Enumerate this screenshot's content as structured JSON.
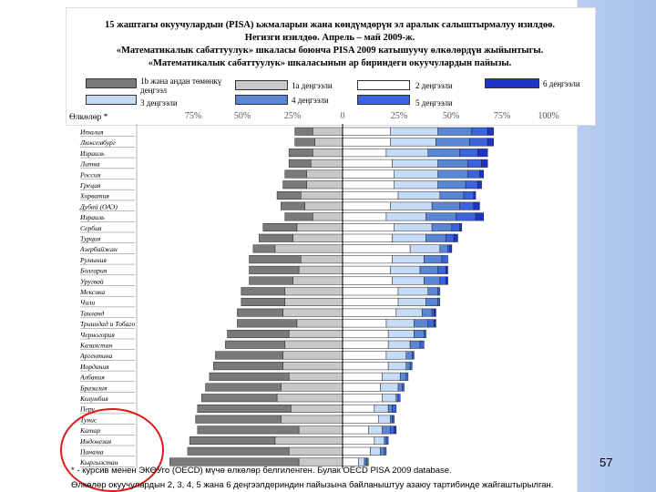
{
  "title_lines": [
    "15 жаштагы окуучулардын (PISA) ьжмаларын жана көндүмдөрүн эл аралык салыштырмалуу изилдөө.",
    "Негизги изилдөө. Апрель – май 2009-ж.",
    "«Математикалык сабаттуулук» шкаласы боюнча PISA 2009 катышуучу өлкөлөрдүн жыйынтыгы.",
    "«Математикалык  сабаттуулук» шкаласынын ар бириндеги окуучулардын пайызы."
  ],
  "legend": [
    {
      "label": "1b жана андан төмөнкү деңгээл",
      "color": "#7a7a7a",
      "level": "below1"
    },
    {
      "label": "1a деңгээли",
      "color": "#c8c8c8",
      "level": "1"
    },
    {
      "label": "2 деңгээли",
      "color": "#ffffff",
      "level": "2"
    },
    {
      "label": "6 деңгээли",
      "color": "#1e34c8",
      "level": "6"
    },
    {
      "label": "3 деңгээли",
      "color": "#c6dcf6",
      "level": "3"
    },
    {
      "label": "4 деңгээли",
      "color": "#5a86d6",
      "level": "4"
    },
    {
      "label": "5 деңгээли",
      "color": "#3b63df",
      "level": "5"
    }
  ],
  "corner_label": "Өлкөлөр *",
  "page_number": "57",
  "footnotes": [
    "* - курсив менен  ЭКӨУго (OECD) мүчө өлкөлөр белгиленген. Булак OECD PISA 2009 database.",
    "Өлкөлөр окуучулардын 2, 3, 4, 5 жана 6 деңгээлдериндин пайызына байланыштуу азаюу тартибинде жайгаштырылган."
  ],
  "chart_data": {
    "type": "bar",
    "stacking": "diverging-100-percent",
    "title": "«Математикалык сабаттуулук» шкаласынын ар бириндеги окуучулардын пайызы",
    "xlabel": "",
    "ylabel": "Өлкөлөр *",
    "xlim": [
      -100,
      100
    ],
    "xtick_labels": [
      "75%",
      "50%",
      "25%",
      "0",
      "25%",
      "50%",
      "75%",
      "100%"
    ],
    "xtick_values": [
      -75,
      -50,
      -25,
      0,
      25,
      50,
      75,
      100
    ],
    "series_order": [
      "below1",
      "1",
      "2",
      "3",
      "4",
      "5",
      "6"
    ],
    "series_colors": {
      "below1": "#7a7a7a",
      "1": "#c8c8c8",
      "2": "#ffffff",
      "3": "#c6dcf6",
      "4": "#5a86d6",
      "5": "#3b63df",
      "6": "#1e34c8"
    },
    "categories": [
      "Италия",
      "Люксембург",
      "Израиль",
      "Литва",
      "Россия",
      "Греция",
      "Хорватия",
      "Дубай (ОАЭ)",
      "Израиль",
      "Сербия",
      "Турция",
      "Азербайжан",
      "Румыния",
      "Болгария",
      "Уругвай",
      "Мексика",
      "Чили",
      "Таиланд",
      "Тринидад и Тобаго",
      "Черногория",
      "Казахстан",
      "Аргентина",
      "Иордания",
      "Албания",
      "Бразилия",
      "Колумбия",
      "Перу",
      "Тунис",
      "Катар",
      "Индонезия",
      "Панама",
      "Кыргызстан"
    ],
    "series": [
      {
        "name": "below1",
        "values": [
          9,
          10,
          12,
          11,
          11,
          12,
          12,
          12,
          14,
          17,
          17,
          11,
          26,
          25,
          22,
          22,
          22,
          23,
          30,
          31,
          30,
          34,
          35,
          40,
          38,
          38,
          47,
          43,
          51,
          43,
          51,
          65
        ]
      },
      {
        "name": "1",
        "values": [
          15,
          14,
          15,
          16,
          18,
          18,
          21,
          19,
          15,
          23,
          25,
          34,
          21,
          22,
          25,
          29,
          29,
          30,
          23,
          27,
          29,
          30,
          30,
          27,
          31,
          33,
          26,
          31,
          22,
          34,
          27,
          22
        ]
      },
      {
        "name": "2",
        "values": [
          24,
          24,
          22,
          25,
          26,
          26,
          28,
          24,
          22,
          26,
          25,
          34,
          25,
          24,
          25,
          28,
          28,
          27,
          22,
          23,
          23,
          22,
          23,
          20,
          19,
          20,
          16,
          18,
          13,
          16,
          14,
          8
        ]
      },
      {
        "name": "3",
        "values": [
          24,
          23,
          21,
          23,
          22,
          22,
          21,
          21,
          20,
          19,
          17,
          15,
          16,
          15,
          16,
          15,
          14,
          13,
          14,
          13,
          11,
          10,
          9,
          9,
          9,
          7,
          7,
          6,
          7,
          5,
          5,
          3
        ]
      },
      {
        "name": "4",
        "values": [
          17,
          17,
          16,
          15,
          15,
          14,
          12,
          14,
          15,
          10,
          10,
          4,
          9,
          9,
          8,
          5,
          6,
          5,
          7,
          5,
          5,
          3,
          2,
          3,
          2,
          1,
          2,
          1,
          4,
          1,
          2,
          1
        ]
      },
      {
        "name": "5",
        "values": [
          8,
          9,
          9,
          7,
          6,
          6,
          5,
          7,
          10,
          4,
          4,
          1,
          3,
          4,
          3,
          1,
          1,
          1,
          3,
          1,
          2,
          1,
          1,
          1,
          1,
          1,
          2,
          1,
          2,
          1,
          1,
          1
        ]
      },
      {
        "name": "6",
        "values": [
          3,
          3,
          5,
          3,
          2,
          2,
          1,
          3,
          4,
          1,
          2,
          1,
          0,
          1,
          1,
          0,
          0,
          1,
          1,
          0,
          0,
          0,
          0,
          0,
          0,
          0,
          0,
          0,
          1,
          0,
          0,
          0
        ]
      }
    ]
  }
}
